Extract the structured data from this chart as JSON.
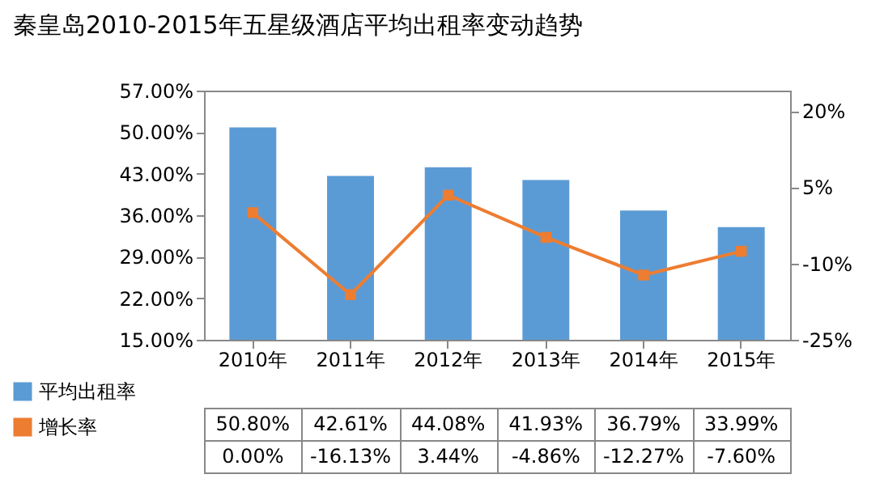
{
  "chart_data": {
    "type": "bar",
    "title": "秦皇岛2010-2015年五星级酒店平均出租率变动趋势",
    "categories": [
      "2010年",
      "2011年",
      "2012年",
      "2013年",
      "2014年",
      "2015年"
    ],
    "series": [
      {
        "name": "平均出租率",
        "color": "#5b9bd5",
        "values": [
          50.8,
          42.61,
          44.08,
          41.93,
          36.79,
          33.99
        ],
        "value_labels": [
          "50.80%",
          "42.61%",
          "44.08%",
          "41.93%",
          "36.79%",
          "33.99%"
        ]
      },
      {
        "name": "增长率",
        "type": "line",
        "axis": "y2",
        "color": "#ed7d31",
        "marker": "square",
        "values": [
          0.0,
          -16.13,
          3.44,
          -4.86,
          -12.27,
          -7.6
        ],
        "value_labels": [
          "0.00%",
          "-16.13%",
          "3.44%",
          "-4.86%",
          "-12.27%",
          "-7.60%"
        ]
      }
    ],
    "ylim": [
      15,
      57
    ],
    "yticks": [
      {
        "value": 15,
        "label": "15.00%"
      },
      {
        "value": 22,
        "label": "22.00%"
      },
      {
        "value": 29,
        "label": "29.00%"
      },
      {
        "value": 36,
        "label": "36.00%"
      },
      {
        "value": 43,
        "label": "43.00%"
      },
      {
        "value": 50,
        "label": "50.00%"
      },
      {
        "value": 57,
        "label": "57.00%"
      }
    ],
    "y2lim": [
      -25,
      24
    ],
    "y2ticks": [
      {
        "value": -25,
        "label": "-25%"
      },
      {
        "value": -10,
        "label": "-10%"
      },
      {
        "value": 5,
        "label": "5%"
      },
      {
        "value": 20,
        "label": "20%"
      }
    ],
    "data_labels": true,
    "legend": "bottom left",
    "grid": false
  }
}
